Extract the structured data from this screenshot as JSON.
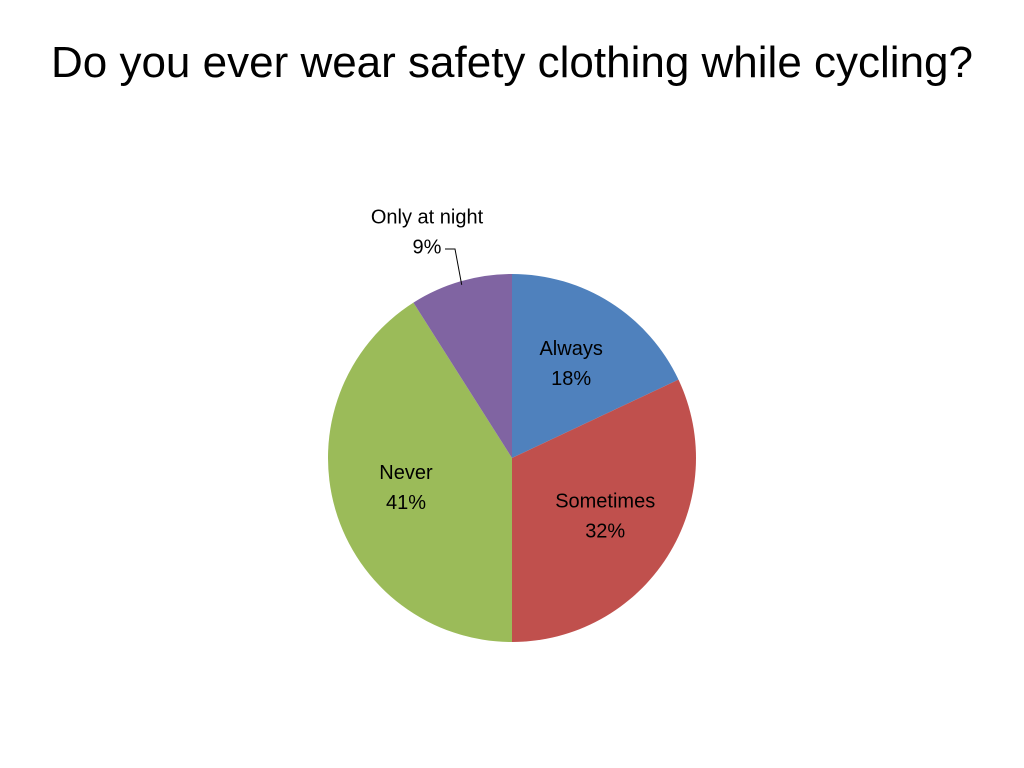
{
  "chart_data": {
    "type": "pie",
    "title": "Do you ever wear safety clothing while cycling?",
    "categories": [
      "Always",
      "Sometimes",
      "Never",
      "Only at night"
    ],
    "values": [
      18,
      32,
      41,
      9
    ],
    "value_labels": [
      "18%",
      "32%",
      "41%",
      "9%"
    ],
    "colors": [
      "#4f81bd",
      "#c0504d",
      "#9bbb59",
      "#8064a2"
    ]
  }
}
